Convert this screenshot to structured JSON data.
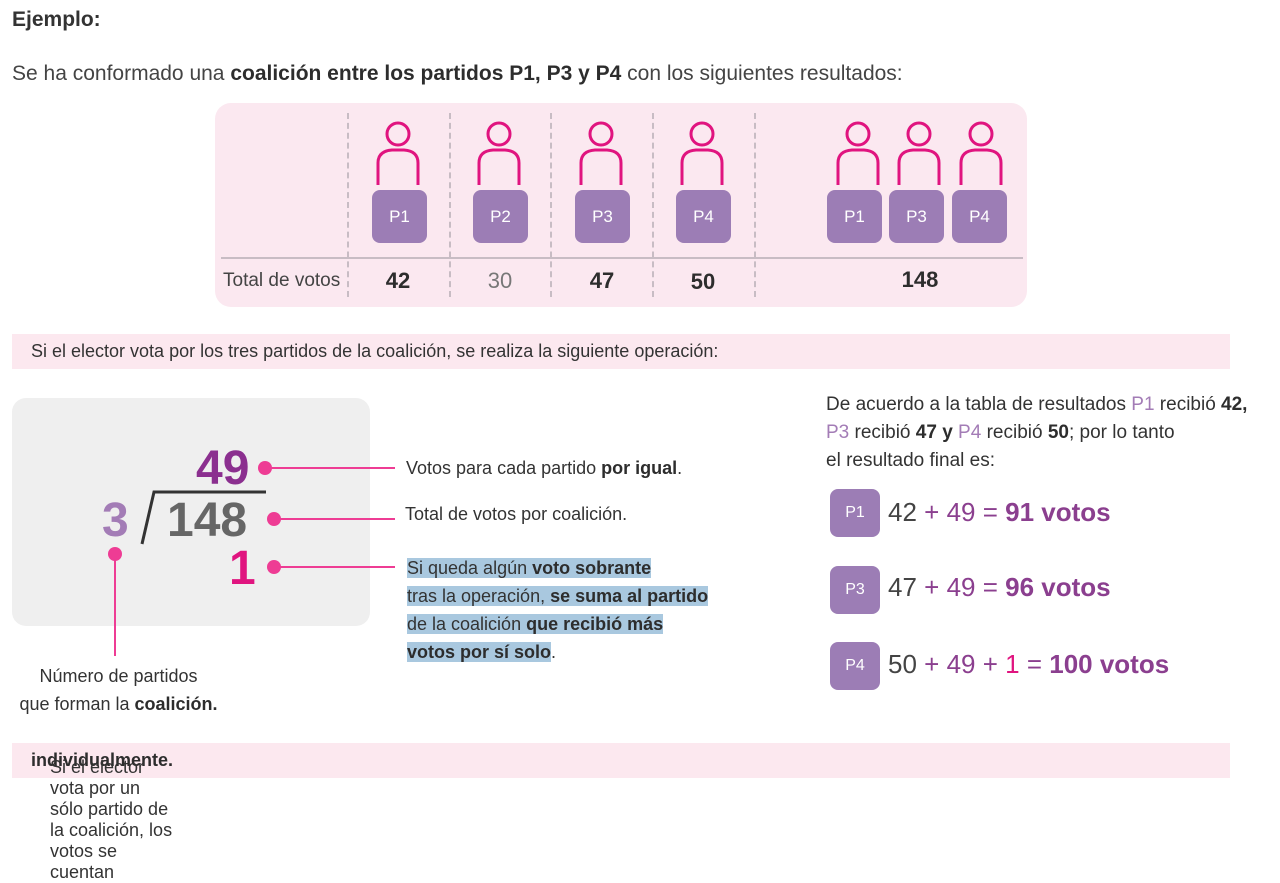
{
  "header": {
    "title": "Ejemplo:"
  },
  "intro": {
    "prefix": "Se ha conformado una ",
    "bold": "coalición entre los partidos P1, P3 y P4",
    "suffix": " con los siguientes resultados:"
  },
  "table": {
    "parties": [
      "P1",
      "P2",
      "P3",
      "P4"
    ],
    "coalition_parties": [
      "P1",
      "P3",
      "P4"
    ],
    "total_label": "Total de votos",
    "totals": [
      "42",
      "30",
      "47",
      "50"
    ],
    "coalition_total": "148",
    "icon": "person-icon"
  },
  "banner1": "Si el elector vota por los tres partidos de la coalición, se realiza la siguiente operación:",
  "division": {
    "quotient": "49",
    "divisor": "3",
    "dividend": "148",
    "remainder": "1"
  },
  "annotations": {
    "quotient_prefix": "Votos para cada partido ",
    "quotient_bold": "por igual",
    "quotient_suffix": ".",
    "dividend": "Total de votos por coalición.",
    "remainder_lines": [
      {
        "text": "Si queda algún ",
        "bold": "voto sobrante"
      },
      {
        "text": "tras la operación, ",
        "bold": "se suma al partido"
      },
      {
        "text": "de la coalición ",
        "bold": "que recibió más"
      },
      {
        "text": "",
        "bold": "votos por sí solo"
      }
    ],
    "remainder_end": ".",
    "divisor_line1": "Número de partidos",
    "divisor_line2_prefix": "que forman la ",
    "divisor_line2_bold": "coalición."
  },
  "results": {
    "t1": "De acuerdo a la tabla de resultados ",
    "p1": "P1",
    "t2": " recibió ",
    "v1": "42,",
    "p3": "P3",
    "t3": " recibió ",
    "v3": "47 y",
    "p4": "P4",
    "t4": " recibió ",
    "v4": "50",
    "t5": "; por lo tanto",
    "t6": "el resultado final es:",
    "rows": [
      {
        "party": "P1",
        "base": "42",
        "plus1": " + ",
        "share": "49",
        "eq": " = ",
        "total": "91 votos"
      },
      {
        "party": "P3",
        "base": "47",
        "plus1": " + ",
        "share": "49",
        "eq": " = ",
        "total": "96 votos"
      },
      {
        "party": "P4",
        "base": "50",
        "plus1": " + ",
        "share": "49",
        "plus2": " + ",
        "extra": "1",
        "eq": " = ",
        "total": "100 votos"
      }
    ]
  },
  "banner2": {
    "prefix": "Si el elector vota por un sólo partido de la coalición, los votos se cuentan ",
    "bold": "individualmente."
  },
  "colors": {
    "magenta": "#e0147f",
    "purple": "#8b3f8f",
    "lavender": "#9c7db5",
    "pink_bg": "#fbe8f0"
  }
}
